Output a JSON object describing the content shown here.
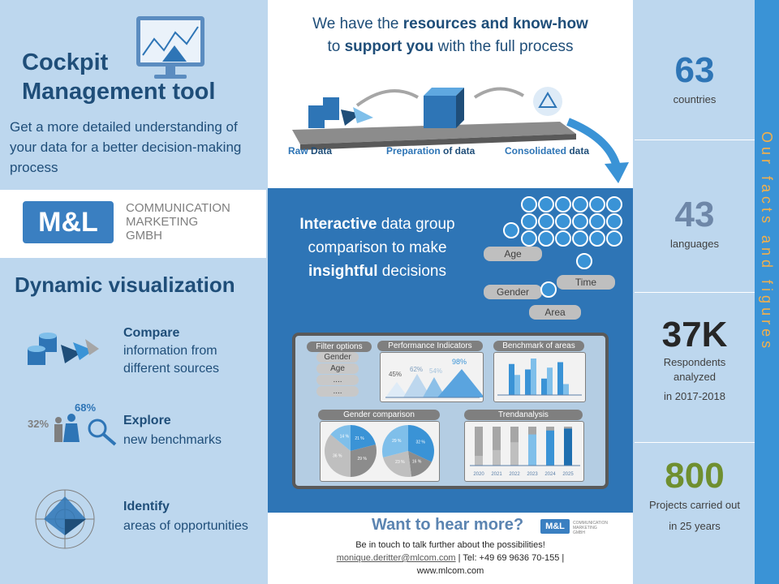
{
  "header": {
    "title_line1": "Cockpit",
    "title_line2": "Management tool",
    "subtitle": "Get a more detailed understanding of your data for a better decision-making process"
  },
  "logo": {
    "mark": "M&L",
    "line1": "COMMUNICATION",
    "line2": "MARKETING",
    "line3": "GMBH"
  },
  "left": {
    "section_title": "Dynamic visualization",
    "features": [
      {
        "title": "Compare",
        "text": "information from different sources"
      },
      {
        "title": "Explore",
        "text": "new benchmarks"
      },
      {
        "title": "Identify",
        "text": "areas of opportunities"
      }
    ],
    "explore_pct_a": "32%",
    "explore_pct_b": "68%"
  },
  "process": {
    "line1_pre": "We have the ",
    "line1_bold": "resources and know-how",
    "line2_pre": "to ",
    "line2_bold": "support you",
    "line2_post": " with the full process",
    "steps": [
      {
        "hl": "Raw",
        "rest": " Data"
      },
      {
        "hl": "Preparation",
        "rest": " of data"
      },
      {
        "hl": "Consolidated",
        "rest": " data"
      }
    ]
  },
  "interactive": {
    "bold1": "Interactive",
    "text1": "  data group comparison to make ",
    "bold2": "insightful",
    "text2": " decisions",
    "tags": [
      "Age",
      "Gender",
      "Time",
      "Area"
    ]
  },
  "dashboard": {
    "filter": {
      "title": "Filter options",
      "items": [
        "Gender",
        "Age",
        "....",
        "...."
      ]
    },
    "performance": {
      "title": "Performance Indicators",
      "values": [
        "45%",
        "62%",
        "54%",
        "98%"
      ]
    },
    "benchmark": {
      "title": "Benchmark of areas",
      "values": [
        [
          85,
          55
        ],
        [
          70,
          100
        ],
        [
          45,
          75
        ],
        [
          90,
          30
        ]
      ]
    },
    "gender": {
      "title": "Gender comparison",
      "pie1": [
        "21 %",
        "29 %",
        "36 %",
        "14 %"
      ],
      "pie2": [
        "32 %",
        "16 %",
        "23 %",
        "29 %"
      ]
    },
    "trend": {
      "title": "Trendanalysis",
      "years": [
        "2020",
        "2021",
        "2022",
        "2023",
        "2024",
        "2025"
      ],
      "fill": [
        25,
        40,
        60,
        80,
        90,
        95
      ],
      "colors": [
        "#bfbfbf",
        "#bfbfbf",
        "#bfbfbf",
        "#7fbfea",
        "#3a93d6",
        "#1f6fb0"
      ]
    }
  },
  "footer": {
    "title": "Want to hear more?",
    "text": "Be in touch to talk further about the possibilities!",
    "email": "monique.deritter@mlcom.com",
    "tel": " | Tel: +49 69 9636 70-155 |",
    "web": "www.mlcom.com"
  },
  "facts": [
    {
      "n": "63",
      "l": "countries",
      "color": "#2e75b6"
    },
    {
      "n": "43",
      "l": "languages",
      "color": "#6e87a8"
    },
    {
      "n": "37K",
      "l": "Respondents analyzed",
      "l2": "in 2017-2018",
      "color": "#262626"
    },
    {
      "n": "800",
      "l": "Projects carried out",
      "l2": "in 25 years",
      "color": "#6f8f2f"
    }
  ],
  "strip": {
    "text": "Our facts and figures",
    "color": "#f4b04a"
  }
}
